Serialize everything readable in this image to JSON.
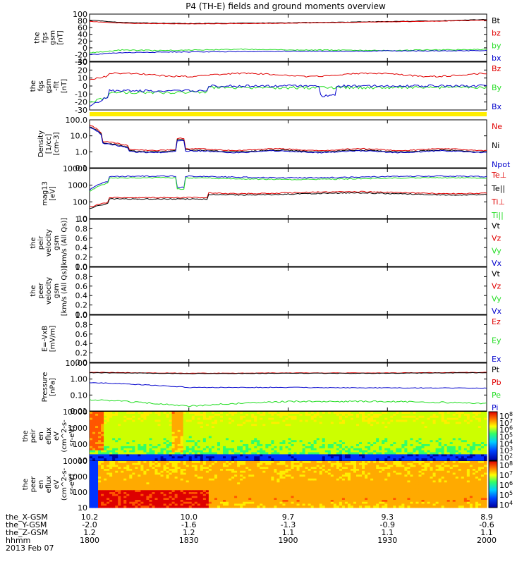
{
  "title": "P4 (TH-E) fields and ground moments overview",
  "colors": {
    "black": "#000000",
    "red": "#e00000",
    "green": "#22dd22",
    "blue": "#0000cc",
    "yellow": "#ffee00"
  },
  "time_axis": {
    "ticks": [
      "1800",
      "1830",
      "1900",
      "1930",
      "2000"
    ],
    "rows": [
      {
        "label": "the_X-GSM",
        "values": [
          "10.2",
          "10.0",
          "9.7",
          "9.3",
          "8.9"
        ]
      },
      {
        "label": "the_Y-GSM",
        "values": [
          "-2.0",
          "-1.6",
          "-1.3",
          "-0.9",
          "-0.6"
        ]
      },
      {
        "label": "the_Z-GSM",
        "values": [
          "1.2",
          "1.2",
          "1.1",
          "1.1",
          "1.1"
        ]
      },
      {
        "label": "hhmm",
        "values": [
          "1800",
          "1830",
          "1900",
          "1930",
          "2000"
        ]
      }
    ],
    "date": "2013 Feb 07"
  },
  "panels": [
    {
      "ylabel": [
        "the",
        "fgs",
        "gsm",
        "[nT]"
      ],
      "ticks": [
        "100",
        "80",
        "60",
        "40",
        "20",
        "0",
        "-20",
        "-40"
      ],
      "legend": [
        [
          "Bt",
          "black"
        ],
        [
          "bz",
          "red"
        ],
        [
          "by",
          "green"
        ],
        [
          "bx",
          "blue"
        ]
      ]
    },
    {
      "ylabel": [
        "the",
        "fgs",
        "gsm",
        "-fit",
        "[nT]"
      ],
      "ticks": [
        "30",
        "20",
        "10",
        "0",
        "-10",
        "-20",
        "-30"
      ],
      "legend": [
        [
          "Bz",
          "red"
        ],
        [
          "By",
          "green"
        ],
        [
          "Bx",
          "blue"
        ]
      ]
    },
    {
      "ylabel": [],
      "ticks": [],
      "legend": []
    },
    {
      "ylabel": [
        "Density",
        "[1/cc]",
        "[cm-3]"
      ],
      "ticks": [
        "100.0",
        "10.0",
        "1.0",
        "0.1"
      ],
      "legend": [
        [
          "Ne",
          "red"
        ],
        [
          "Ni",
          "black"
        ],
        [
          "Npot",
          "blue"
        ]
      ]
    },
    {
      "ylabel": [
        "mag13",
        "[eV]"
      ],
      "ticks": [
        "10000",
        "1000",
        "100",
        "10"
      ],
      "legend": [
        [
          "Te⊥",
          "red"
        ],
        [
          "Te||",
          "black"
        ],
        [
          "Ti⊥",
          "red"
        ],
        [
          "Ti||",
          "green"
        ]
      ]
    },
    {
      "ylabel": [
        "the",
        "peir",
        "velocity",
        "gsm",
        "[km/s (All Qs)]"
      ],
      "ticks": [
        "1.0",
        "0.8",
        "0.6",
        "0.4",
        "0.2",
        "0.0"
      ],
      "legend": [
        [
          "Vt",
          "black"
        ],
        [
          "Vz",
          "red"
        ],
        [
          "Vy",
          "green"
        ],
        [
          "Vx",
          "blue"
        ]
      ]
    },
    {
      "ylabel": [
        "the",
        "peer",
        "velocity",
        "gsm",
        "[km/s (All Qs)]"
      ],
      "ticks": [
        "1.0",
        "0.8",
        "0.6",
        "0.4",
        "0.2",
        "0.0"
      ],
      "legend": [
        [
          "Vt",
          "black"
        ],
        [
          "Vz",
          "red"
        ],
        [
          "Vy",
          "green"
        ],
        [
          "Vx",
          "blue"
        ]
      ]
    },
    {
      "ylabel": [
        "E=-VxB",
        "[mV/m]"
      ],
      "ticks": [
        "1.0",
        "0.8",
        "0.6",
        "0.4",
        "0.2",
        "0.0"
      ],
      "legend": [
        [
          "Ez",
          "red"
        ],
        [
          "Ey",
          "green"
        ],
        [
          "Ex",
          "blue"
        ]
      ]
    },
    {
      "ylabel": [
        "Pressure",
        "[nPa]"
      ],
      "ticks": [
        "10.00",
        "1.00",
        "0.10",
        "0.01"
      ],
      "legend": [
        [
          "Pt",
          "black"
        ],
        [
          "Pb",
          "red"
        ],
        [
          "Pe",
          "green"
        ],
        [
          "Pi",
          "blue"
        ]
      ]
    },
    {
      "ylabel": [
        "the",
        "peir",
        "en",
        "eflux",
        "eV",
        "(cm^2-s-",
        "sr-eV)"
      ],
      "ticks": [
        "10000",
        "1000",
        "100",
        "10"
      ],
      "cbar_ticks": [
        "10^8",
        "10^7",
        "10^6",
        "10^5",
        "10^4",
        "10^3",
        "10^2"
      ]
    },
    {
      "ylabel": [
        "the",
        "peer",
        "en",
        "eflux",
        "eV",
        "(cm^2-s-",
        "sr-eV)"
      ],
      "ticks": [
        "10000",
        "1000",
        "100",
        "10"
      ],
      "cbar_ticks": [
        "10^8",
        "10^7",
        "10^6",
        "10^5",
        "10^4"
      ]
    }
  ],
  "chart_data": {
    "type": "line",
    "title": "P4 (TH-E) fields and ground moments overview",
    "x_ticks": [
      "1800",
      "1830",
      "1900",
      "1930",
      "2000"
    ],
    "series": [
      {
        "name": "Bt",
        "x": [
          "1800",
          "1810",
          "1820",
          "1830",
          "1845",
          "1900",
          "1915",
          "1930",
          "1945",
          "2000"
        ],
        "values": [
          82,
          75,
          73,
          72,
          73,
          74,
          76,
          78,
          80,
          84
        ]
      },
      {
        "name": "bz",
        "x": [
          "1800",
          "1810",
          "1820",
          "1830",
          "1845",
          "1900",
          "1915",
          "1930",
          "1945",
          "2000"
        ],
        "values": [
          78,
          73,
          72,
          71,
          72,
          73,
          75,
          77,
          79,
          82
        ]
      },
      {
        "name": "by",
        "x": [
          "1800",
          "1810",
          "1820",
          "1830",
          "1845",
          "1900",
          "1915",
          "1930",
          "1945",
          "2000"
        ],
        "values": [
          -15,
          -6,
          -8,
          -7,
          -4,
          -6,
          -7,
          -8,
          -6,
          -5
        ]
      },
      {
        "name": "bx",
        "x": [
          "1800",
          "1810",
          "1820",
          "1830",
          "1845",
          "1900",
          "1915",
          "1930",
          "1945",
          "2000"
        ],
        "values": [
          -20,
          -14,
          -13,
          -12,
          -11,
          -10,
          -10,
          -9,
          -9,
          -8
        ]
      },
      {
        "name": "Ne",
        "x": [
          "1800",
          "1805",
          "1810",
          "1820",
          "1830",
          "1840",
          "1900",
          "1930",
          "2000"
        ],
        "values": [
          40,
          8,
          2,
          1.2,
          1.5,
          1.3,
          1.3,
          1.2,
          1.1
        ]
      },
      {
        "name": "Pt",
        "x": [
          "1800",
          "1830",
          "1900",
          "1930",
          "2000"
        ],
        "values": [
          2.5,
          2.2,
          2.3,
          2.3,
          2.5
        ]
      },
      {
        "name": "Pi",
        "x": [
          "1800",
          "1830",
          "1900",
          "1930",
          "2000"
        ],
        "values": [
          0.6,
          0.3,
          0.3,
          0.28,
          0.27
        ]
      },
      {
        "name": "Pe",
        "x": [
          "1800",
          "1830",
          "1900",
          "1930",
          "2000"
        ],
        "values": [
          0.05,
          0.02,
          0.04,
          0.04,
          0.03
        ]
      }
    ]
  }
}
